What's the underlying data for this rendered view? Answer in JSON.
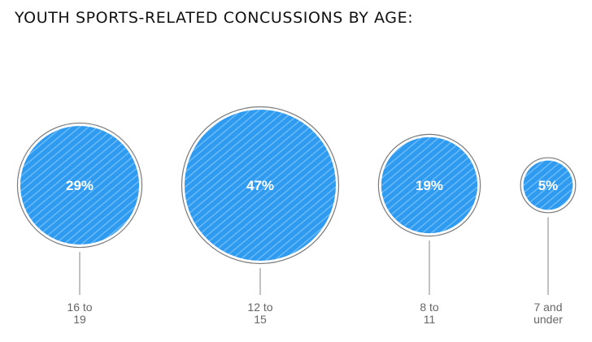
{
  "chart_data": {
    "type": "bubble",
    "title": "YOUTH SPORTS-RELATED CONCUSSIONS BY AGE:",
    "categories": [
      "16 to 19",
      "12 to 15",
      "8 to 11",
      "7 and under"
    ],
    "values": [
      29,
      47,
      19,
      5
    ],
    "value_labels": [
      "29%",
      "47%",
      "19%",
      "5%"
    ],
    "unit": "%",
    "colors": {
      "bubble_fill": "#2e9bf0",
      "bubble_stripe": "#6fbcf7",
      "bubble_ring": "#7a7a7a",
      "leader_line": "#9a9a9a",
      "label_text": "#666666"
    }
  }
}
